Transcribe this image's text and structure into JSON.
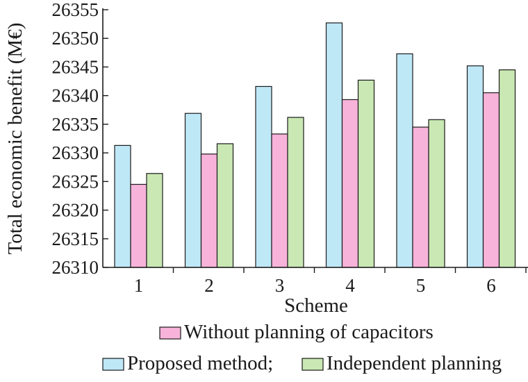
{
  "chart_data": {
    "type": "bar",
    "title": "",
    "xlabel": "Scheme",
    "ylabel": "Total economic benefit (M€)",
    "categories": [
      "1",
      "2",
      "3",
      "4",
      "5",
      "6"
    ],
    "ylim": [
      26310,
      26355
    ],
    "yticks": [
      "26310",
      "26315",
      "26320",
      "26325",
      "26330",
      "26335",
      "26340",
      "26345",
      "26350",
      "26355"
    ],
    "grid": false,
    "legend_position": "bottom",
    "series": [
      {
        "name": "Proposed method;",
        "color": "#bfe8f7",
        "values": [
          26331.3,
          26336.9,
          26341.6,
          26352.7,
          26347.3,
          26345.2
        ]
      },
      {
        "name": "Without planning of capacitors",
        "color": "#f7b3d9",
        "values": [
          26324.5,
          26329.8,
          26333.3,
          26339.3,
          26334.5,
          26340.5
        ]
      },
      {
        "name": "Independent planning",
        "color": "#c9e8b3",
        "values": [
          26326.4,
          26331.6,
          26336.2,
          26342.7,
          26335.8,
          26344.5
        ]
      }
    ]
  }
}
